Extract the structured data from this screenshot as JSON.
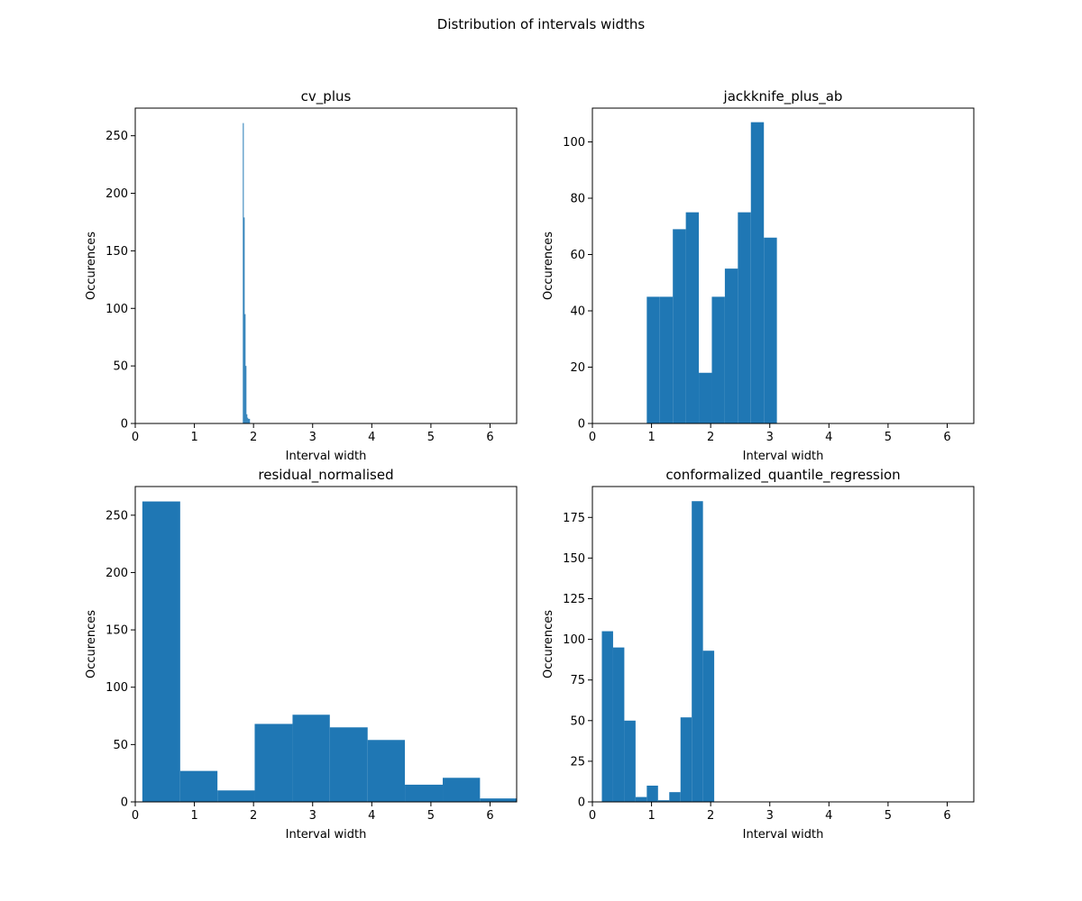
{
  "figure": {
    "title": "Distribution of intervals widths",
    "bar_color": "#1f77b4"
  },
  "chart_data": [
    {
      "type": "bar",
      "title": "cv_plus",
      "xlabel": "Interval width",
      "ylabel": "Occurences",
      "xlim": [
        0,
        6.45
      ],
      "ylim": [
        0,
        274
      ],
      "xticks": [
        "0",
        "1",
        "2",
        "3",
        "4",
        "5",
        "6"
      ],
      "yticks": [
        "0",
        "50",
        "100",
        "150",
        "200",
        "250"
      ],
      "grid": false,
      "bins": [
        {
          "x0": 1.82,
          "x1": 1.835,
          "value": 261
        },
        {
          "x0": 1.835,
          "x1": 1.85,
          "value": 179
        },
        {
          "x0": 1.85,
          "x1": 1.865,
          "value": 95
        },
        {
          "x0": 1.865,
          "x1": 1.88,
          "value": 50
        },
        {
          "x0": 1.88,
          "x1": 1.895,
          "value": 8
        },
        {
          "x0": 1.895,
          "x1": 1.91,
          "value": 5
        },
        {
          "x0": 1.91,
          "x1": 1.925,
          "value": 4
        },
        {
          "x0": 1.925,
          "x1": 1.94,
          "value": 4
        }
      ]
    },
    {
      "type": "bar",
      "title": "jackknife_plus_ab",
      "xlabel": "Interval width",
      "ylabel": "Occurences",
      "xlim": [
        0,
        6.45
      ],
      "ylim": [
        0,
        112
      ],
      "xticks": [
        "0",
        "1",
        "2",
        "3",
        "4",
        "5",
        "6"
      ],
      "yticks": [
        "0",
        "20",
        "40",
        "60",
        "80",
        "100"
      ],
      "grid": false,
      "bins": [
        {
          "x0": 0.92,
          "x1": 1.14,
          "value": 45
        },
        {
          "x0": 1.14,
          "x1": 1.36,
          "value": 45
        },
        {
          "x0": 1.36,
          "x1": 1.58,
          "value": 69
        },
        {
          "x0": 1.58,
          "x1": 1.8,
          "value": 75
        },
        {
          "x0": 1.8,
          "x1": 2.02,
          "value": 18
        },
        {
          "x0": 2.02,
          "x1": 2.24,
          "value": 45
        },
        {
          "x0": 2.24,
          "x1": 2.46,
          "value": 55
        },
        {
          "x0": 2.46,
          "x1": 2.68,
          "value": 75
        },
        {
          "x0": 2.68,
          "x1": 2.9,
          "value": 107
        },
        {
          "x0": 2.9,
          "x1": 3.12,
          "value": 66
        }
      ]
    },
    {
      "type": "bar",
      "title": "residual_normalised",
      "xlabel": "Interval width",
      "ylabel": "Occurences",
      "xlim": [
        0,
        6.45
      ],
      "ylim": [
        0,
        275
      ],
      "xticks": [
        "0",
        "1",
        "2",
        "3",
        "4",
        "5",
        "6"
      ],
      "yticks": [
        "0",
        "50",
        "100",
        "150",
        "200",
        "250"
      ],
      "grid": false,
      "bins": [
        {
          "x0": 0.12,
          "x1": 0.76,
          "value": 262
        },
        {
          "x0": 0.76,
          "x1": 1.39,
          "value": 27
        },
        {
          "x0": 1.39,
          "x1": 2.02,
          "value": 10
        },
        {
          "x0": 2.02,
          "x1": 2.66,
          "value": 68
        },
        {
          "x0": 2.66,
          "x1": 3.29,
          "value": 76
        },
        {
          "x0": 3.29,
          "x1": 3.93,
          "value": 65
        },
        {
          "x0": 3.93,
          "x1": 4.56,
          "value": 54
        },
        {
          "x0": 4.56,
          "x1": 5.2,
          "value": 15
        },
        {
          "x0": 5.2,
          "x1": 5.83,
          "value": 21
        },
        {
          "x0": 5.83,
          "x1": 6.45,
          "value": 3
        }
      ]
    },
    {
      "type": "bar",
      "title": "conformalized_quantile_regression",
      "xlabel": "Interval width",
      "ylabel": "Occurences",
      "xlim": [
        0,
        6.45
      ],
      "ylim": [
        0,
        194
      ],
      "xticks": [
        "0",
        "1",
        "2",
        "3",
        "4",
        "5",
        "6"
      ],
      "yticks": [
        "0",
        "25",
        "50",
        "75",
        "100",
        "125",
        "150",
        "175"
      ],
      "grid": false,
      "bins": [
        {
          "x0": 0.16,
          "x1": 0.35,
          "value": 105
        },
        {
          "x0": 0.35,
          "x1": 0.54,
          "value": 95
        },
        {
          "x0": 0.54,
          "x1": 0.73,
          "value": 50
        },
        {
          "x0": 0.73,
          "x1": 0.92,
          "value": 3
        },
        {
          "x0": 0.92,
          "x1": 1.11,
          "value": 10
        },
        {
          "x0": 1.11,
          "x1": 1.3,
          "value": 1
        },
        {
          "x0": 1.3,
          "x1": 1.49,
          "value": 6
        },
        {
          "x0": 1.49,
          "x1": 1.68,
          "value": 52
        },
        {
          "x0": 1.68,
          "x1": 1.87,
          "value": 185
        },
        {
          "x0": 1.87,
          "x1": 2.06,
          "value": 93
        }
      ]
    }
  ]
}
